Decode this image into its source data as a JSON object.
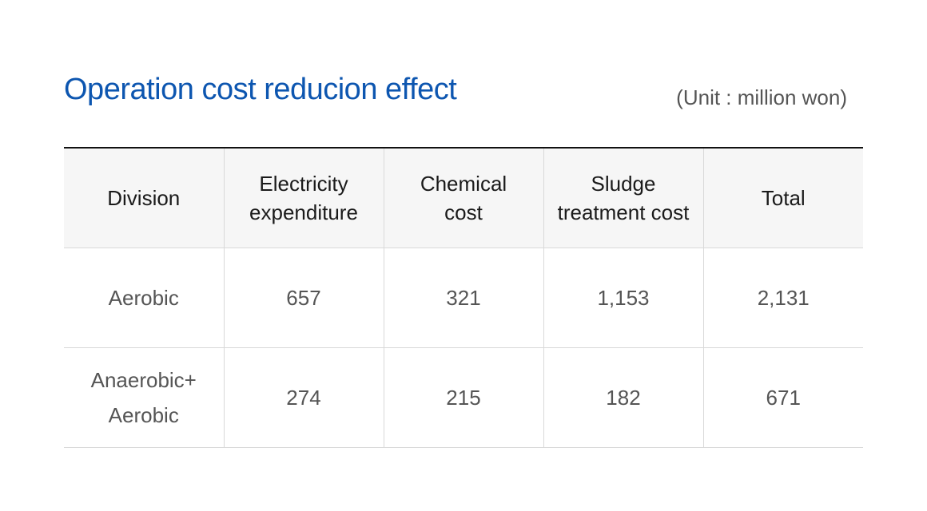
{
  "title": "Operation cost reducion effect",
  "unit": "(Unit : million won)",
  "table": {
    "headers": [
      {
        "line1": "Division",
        "line2": ""
      },
      {
        "line1": "Electricity",
        "line2": "expenditure"
      },
      {
        "line1": "Chemical",
        "line2": "cost"
      },
      {
        "line1": "Sludge",
        "line2": "treatment cost"
      },
      {
        "line1": "Total",
        "line2": ""
      }
    ],
    "rows": [
      {
        "division_line1": "Aerobic",
        "division_line2": "",
        "electricity": "657",
        "chemical": "321",
        "sludge": "1,153",
        "total": "2,131"
      },
      {
        "division_line1": "Anaerobic+",
        "division_line2": "Aerobic",
        "electricity": "274",
        "chemical": "215",
        "sludge": "182",
        "total": "671"
      }
    ]
  }
}
